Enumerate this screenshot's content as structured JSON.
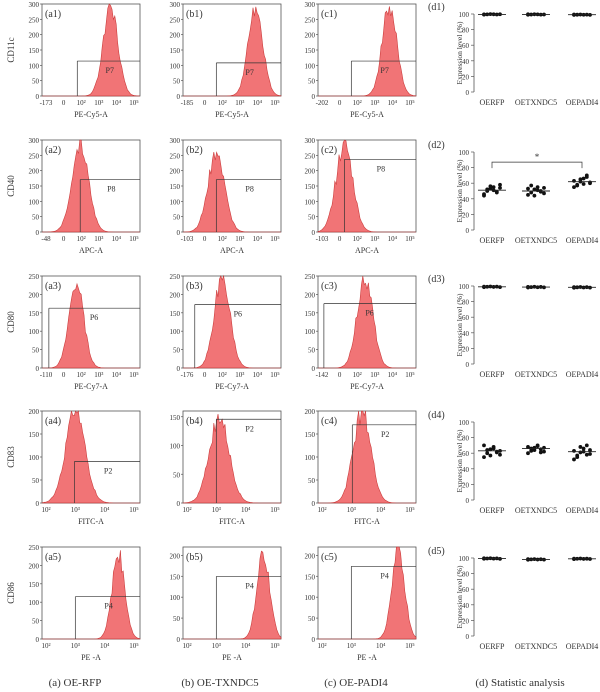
{
  "columns": [
    {
      "caption": "(a) OE-RFP"
    },
    {
      "caption": "(b) OE-TXNDC5"
    },
    {
      "caption": "(c) OE-PADI4"
    },
    {
      "caption": "(d) Statistic analysis"
    }
  ],
  "rows": [
    {
      "marker": "CD11c",
      "xlabel": "PE-Cy5-A",
      "gate": "P7",
      "scale": "log10k",
      "panels": [
        {
          "tag": "(a1)",
          "neg": "-173",
          "yticks": [
            "0",
            "50",
            "100",
            "150",
            "200",
            "250",
            "300"
          ],
          "ymax": 300,
          "peak": 290,
          "center": 0.7,
          "width": 0.075,
          "gate_x": 0.36,
          "gate_y": 0.38
        },
        {
          "tag": "(b1)",
          "neg": "-185",
          "yticks": [
            "0",
            "50",
            "100",
            "150",
            "200",
            "250",
            "300"
          ],
          "ymax": 300,
          "peak": 292,
          "center": 0.74,
          "width": 0.075,
          "gate_x": 0.34,
          "gate_y": 0.36
        },
        {
          "tag": "(c1)",
          "neg": "-202",
          "yticks": [
            "0",
            "50",
            "100",
            "150",
            "200",
            "250",
            "300"
          ],
          "ymax": 300,
          "peak": 290,
          "center": 0.73,
          "width": 0.075,
          "gate_x": 0.34,
          "gate_y": 0.38
        }
      ]
    },
    {
      "marker": "CD40",
      "xlabel": "APC-A",
      "gate": "P8",
      "scale": "log3",
      "panels": [
        {
          "tag": "(a2)",
          "neg": "-48",
          "yticks": [
            "0",
            "50",
            "100",
            "150",
            "200",
            "250",
            "300"
          ],
          "ymax": 300,
          "peak": 280,
          "center": 0.39,
          "width": 0.085,
          "gate_x": 0.39,
          "gate_y": 0.57
        },
        {
          "tag": "(b2)",
          "neg": "-103",
          "yticks": [
            "0",
            "50",
            "100",
            "150",
            "200",
            "250",
            "300"
          ],
          "ymax": 300,
          "peak": 250,
          "center": 0.34,
          "width": 0.085,
          "gate_x": 0.34,
          "gate_y": 0.57
        },
        {
          "tag": "(c2)",
          "neg": "-103",
          "yticks": [
            "0",
            "50",
            "100",
            "150",
            "200",
            "250",
            "300"
          ],
          "ymax": 300,
          "peak": 285,
          "center": 0.27,
          "width": 0.085,
          "gate_x": 0.27,
          "gate_y": 0.79
        }
      ]
    },
    {
      "marker": "CD80",
      "xlabel": "PE-Cy7-A",
      "gate": "P6",
      "scale": "log3",
      "panels": [
        {
          "tag": "(a3)",
          "neg": "-110",
          "yticks": [
            "0",
            "50",
            "100",
            "150",
            "200",
            "250"
          ],
          "ymax": 250,
          "peak": 230,
          "center": 0.35,
          "width": 0.075,
          "gate_x": 0.07,
          "gate_y": 0.65
        },
        {
          "tag": "(b3)",
          "neg": "-176",
          "yticks": [
            "0",
            "50",
            "100",
            "150",
            "200",
            "250"
          ],
          "ymax": 250,
          "peak": 245,
          "center": 0.4,
          "width": 0.08,
          "gate_x": 0.12,
          "gate_y": 0.69
        },
        {
          "tag": "(c3)",
          "neg": "-142",
          "yticks": [
            "0",
            "50",
            "100",
            "150",
            "200",
            "250"
          ],
          "ymax": 250,
          "peak": 245,
          "center": 0.48,
          "width": 0.08,
          "gate_x": 0.06,
          "gate_y": 0.7
        }
      ]
    },
    {
      "marker": "CD83",
      "xlabel": "FITC-A",
      "gate": "P2",
      "scale": "log5",
      "panels": [
        {
          "tag": "(a4)",
          "neg": "",
          "yticks": [
            "0",
            "50",
            "100",
            "150",
            "200"
          ],
          "ymax": 200,
          "peak": 200,
          "center": 0.34,
          "width": 0.1,
          "gate_x": 0.33,
          "gate_y": 0.45
        },
        {
          "tag": "(b4)",
          "neg": "",
          "yticks": [
            "0",
            "50",
            "100",
            "150"
          ],
          "ymax": 160,
          "peak": 150,
          "center": 0.37,
          "width": 0.1,
          "gate_x": 0.34,
          "gate_y": 0.91
        },
        {
          "tag": "(c4)",
          "neg": "",
          "yticks": [
            "0",
            "50",
            "100",
            "150",
            "200"
          ],
          "ymax": 200,
          "peak": 200,
          "center": 0.45,
          "width": 0.09,
          "gate_x": 0.35,
          "gate_y": 0.85
        }
      ]
    },
    {
      "marker": "CD86",
      "xlabel": "PE -A",
      "gate": "P4",
      "scale": "log5",
      "panels": [
        {
          "tag": "(a5)",
          "neg": "",
          "yticks": [
            "0",
            "50",
            "100",
            "150",
            "200",
            "250"
          ],
          "ymax": 250,
          "peak": 230,
          "center": 0.78,
          "width": 0.065,
          "gate_x": 0.34,
          "gate_y": 0.46
        },
        {
          "tag": "(b5)",
          "neg": "",
          "yticks": [
            "0",
            "50",
            "100",
            "150",
            "200"
          ],
          "ymax": 220,
          "peak": 205,
          "center": 0.82,
          "width": 0.065,
          "gate_x": 0.34,
          "gate_y": 0.68
        },
        {
          "tag": "(c5)",
          "neg": "",
          "yticks": [
            "0",
            "50",
            "100",
            "150",
            "200"
          ],
          "ymax": 220,
          "peak": 210,
          "center": 0.82,
          "width": 0.065,
          "gate_x": 0.34,
          "gate_y": 0.79
        }
      ]
    }
  ],
  "scales": {
    "log10k": [
      "0",
      "10²",
      "10³",
      "10⁴",
      "10⁵"
    ],
    "log3": [
      "0",
      "10²",
      "10³",
      "10⁴",
      "10⁵"
    ],
    "log5": [
      "10²",
      "10³",
      "10⁴",
      "10⁵"
    ]
  },
  "colors": {
    "fill": "#f06668",
    "stroke": "#c62828",
    "axis": "#555555",
    "dot": "#111111"
  },
  "chart_data": [
    {
      "type": "scatter",
      "panel": "(d1)",
      "ylabel": "Expression level (%)",
      "categories": [
        "OERFP",
        "OETXNDC5",
        "OEPADI4"
      ],
      "ylim": [
        0,
        100
      ],
      "yticks": [
        "0",
        "20",
        "40",
        "60",
        "80",
        "100"
      ],
      "series": [
        {
          "values": [
            [
              99.2,
              99.5,
              99.8,
              99.6,
              99.4,
              99.7,
              99.5
            ],
            [
              99.0,
              99.3,
              99.6,
              99.5,
              99.2,
              99.4,
              99.7
            ],
            [
              98.8,
              99.1,
              99.3,
              99.0,
              99.2,
              98.9,
              99.4
            ]
          ]
        }
      ],
      "means": [
        99.5,
        99.4,
        99.1
      ]
    },
    {
      "type": "scatter",
      "panel": "(d2)",
      "ylabel": "Expression level (%)",
      "categories": [
        "OERFP",
        "OETXNDC5",
        "OEPADI4"
      ],
      "ylim": [
        0,
        100
      ],
      "yticks": [
        "0",
        "20",
        "40",
        "60",
        "80",
        "100"
      ],
      "series": [
        {
          "values": [
            [
              46,
              50,
              53,
              55,
              49,
              58,
              44,
              52,
              56,
              51,
              48,
              54
            ],
            [
              45,
              48,
              52,
              55,
              50,
              47,
              53,
              57,
              44,
              51,
              49,
              54
            ],
            [
              55,
              58,
              62,
              66,
              70,
              60,
              63,
              57,
              65,
              59,
              68,
              61
            ]
          ]
        }
      ],
      "means": [
        51,
        50,
        62
      ],
      "annotations": [
        {
          "text": "*",
          "from": "OERFP",
          "to": "OEPADI4",
          "y": 87
        }
      ]
    },
    {
      "type": "scatter",
      "panel": "(d3)",
      "ylabel": "Expression level (%)",
      "categories": [
        "OERFP",
        "OETXNDC5",
        "OEPADI4"
      ],
      "ylim": [
        0,
        100
      ],
      "yticks": [
        "0",
        "20",
        "40",
        "60",
        "80",
        "100"
      ],
      "series": [
        {
          "values": [
            [
              98.5,
              99.0,
              99.4,
              98.8,
              99.2,
              98.6,
              99.1
            ],
            [
              98.0,
              98.6,
              99.0,
              98.4,
              98.8,
              98.2,
              98.9
            ],
            [
              97.8,
              98.3,
              98.7,
              98.1,
              98.5,
              97.9,
              98.6
            ]
          ]
        }
      ],
      "means": [
        98.9,
        98.6,
        98.3
      ]
    },
    {
      "type": "scatter",
      "panel": "(d4)",
      "ylabel": "Expression level (%)",
      "categories": [
        "OERFP",
        "OETXNDC5",
        "OEPADI4"
      ],
      "ylim": [
        0,
        100
      ],
      "yticks": [
        "0",
        "20",
        "40",
        "60",
        "80",
        "100"
      ],
      "series": [
        {
          "values": [
            [
              55,
              60,
              65,
              68,
              62,
              58,
              70,
              64,
              57,
              66,
              61,
              63
            ],
            [
              60,
              63,
              67,
              70,
              65,
              62,
              68,
              66,
              64,
              69,
              61,
              67
            ],
            [
              52,
              57,
              61,
              66,
              70,
              59,
              63,
              55,
              68,
              62,
              58,
              64
            ]
          ]
        }
      ],
      "means": [
        63,
        66,
        62
      ]
    },
    {
      "type": "scatter",
      "panel": "(d5)",
      "ylabel": "Expression level (%)",
      "categories": [
        "OERFP",
        "OETXNDC5",
        "OEPADI4"
      ],
      "ylim": [
        0,
        100
      ],
      "yticks": [
        "0",
        "20",
        "40",
        "60",
        "80",
        "100"
      ],
      "series": [
        {
          "values": [
            [
              99.0,
              99.4,
              99.7,
              99.2,
              99.5,
              98.9,
              99.6
            ],
            [
              97.8,
              98.2,
              98.6,
              98.0,
              98.4,
              97.9,
              98.5
            ],
            [
              98.6,
              99.0,
              99.3,
              98.8,
              99.1,
              98.7,
              99.2
            ]
          ]
        }
      ],
      "means": [
        99.3,
        98.2,
        99.0
      ]
    }
  ]
}
